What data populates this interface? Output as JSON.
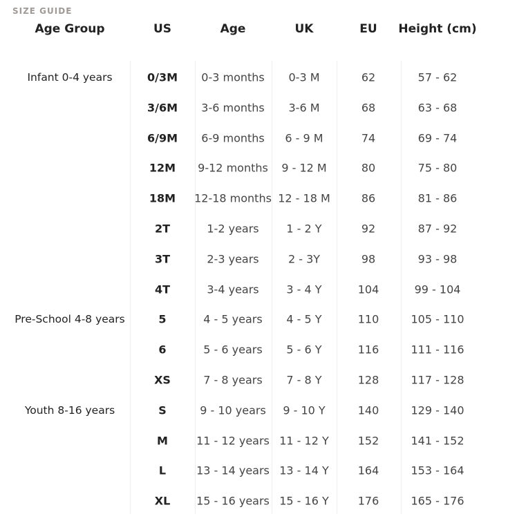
{
  "title": "SIZE GUIDE",
  "headers": [
    "Age Group",
    "US",
    "Age",
    "UK",
    "EU",
    "Height (cm)"
  ],
  "rows": [
    {
      "group": "Infant 0-4 years",
      "us": "0/3M",
      "age": "0-3 months",
      "uk": "0-3 M",
      "eu": "62",
      "height": "57 - 62"
    },
    {
      "group": "",
      "us": "3/6M",
      "age": "3-6 months",
      "uk": "3-6 M",
      "eu": "68",
      "height": "63 - 68"
    },
    {
      "group": "",
      "us": "6/9M",
      "age": "6-9 months",
      "uk": "6 - 9 M",
      "eu": "74",
      "height": "69 - 74"
    },
    {
      "group": "",
      "us": "12M",
      "age": "9-12 months",
      "uk": "9 - 12 M",
      "eu": "80",
      "height": "75 - 80"
    },
    {
      "group": "",
      "us": "18M",
      "age": "12-18 months",
      "uk": "12 - 18 M",
      "eu": "86",
      "height": "81 - 86"
    },
    {
      "group": "",
      "us": "2T",
      "age": "1-2 years",
      "uk": "1 - 2 Y",
      "eu": "92",
      "height": "87 - 92"
    },
    {
      "group": "",
      "us": "3T",
      "age": "2-3 years",
      "uk": "2 - 3Y",
      "eu": "98",
      "height": "93 - 98"
    },
    {
      "group": "",
      "us": "4T",
      "age": "3-4 years",
      "uk": "3 - 4 Y",
      "eu": "104",
      "height": "99 - 104"
    },
    {
      "group": "Pre-School 4-8 years",
      "us": "5",
      "age": "4 - 5 years",
      "uk": "4 - 5 Y",
      "eu": "110",
      "height": "105 - 110"
    },
    {
      "group": "",
      "us": "6",
      "age": "5 - 6 years",
      "uk": "5 - 6 Y",
      "eu": "116",
      "height": "111 - 116"
    },
    {
      "group": "",
      "us": "XS",
      "age": "7 - 8 years",
      "uk": "7 - 8 Y",
      "eu": "128",
      "height": "117 - 128"
    },
    {
      "group": "Youth 8-16 years",
      "us": "S",
      "age": "9 - 10 years",
      "uk": "9 - 10 Y",
      "eu": "140",
      "height": "129 - 140"
    },
    {
      "group": "",
      "us": "M",
      "age": "11 - 12 years",
      "uk": "11 - 12 Y",
      "eu": "152",
      "height": "141 - 152"
    },
    {
      "group": "",
      "us": "L",
      "age": "13 - 14 years",
      "uk": "13 - 14 Y",
      "eu": "164",
      "height": "153 - 164"
    },
    {
      "group": "",
      "us": "XL",
      "age": "15 - 16 years",
      "uk": "15 - 16 Y",
      "eu": "176",
      "height": "165 - 176"
    }
  ]
}
